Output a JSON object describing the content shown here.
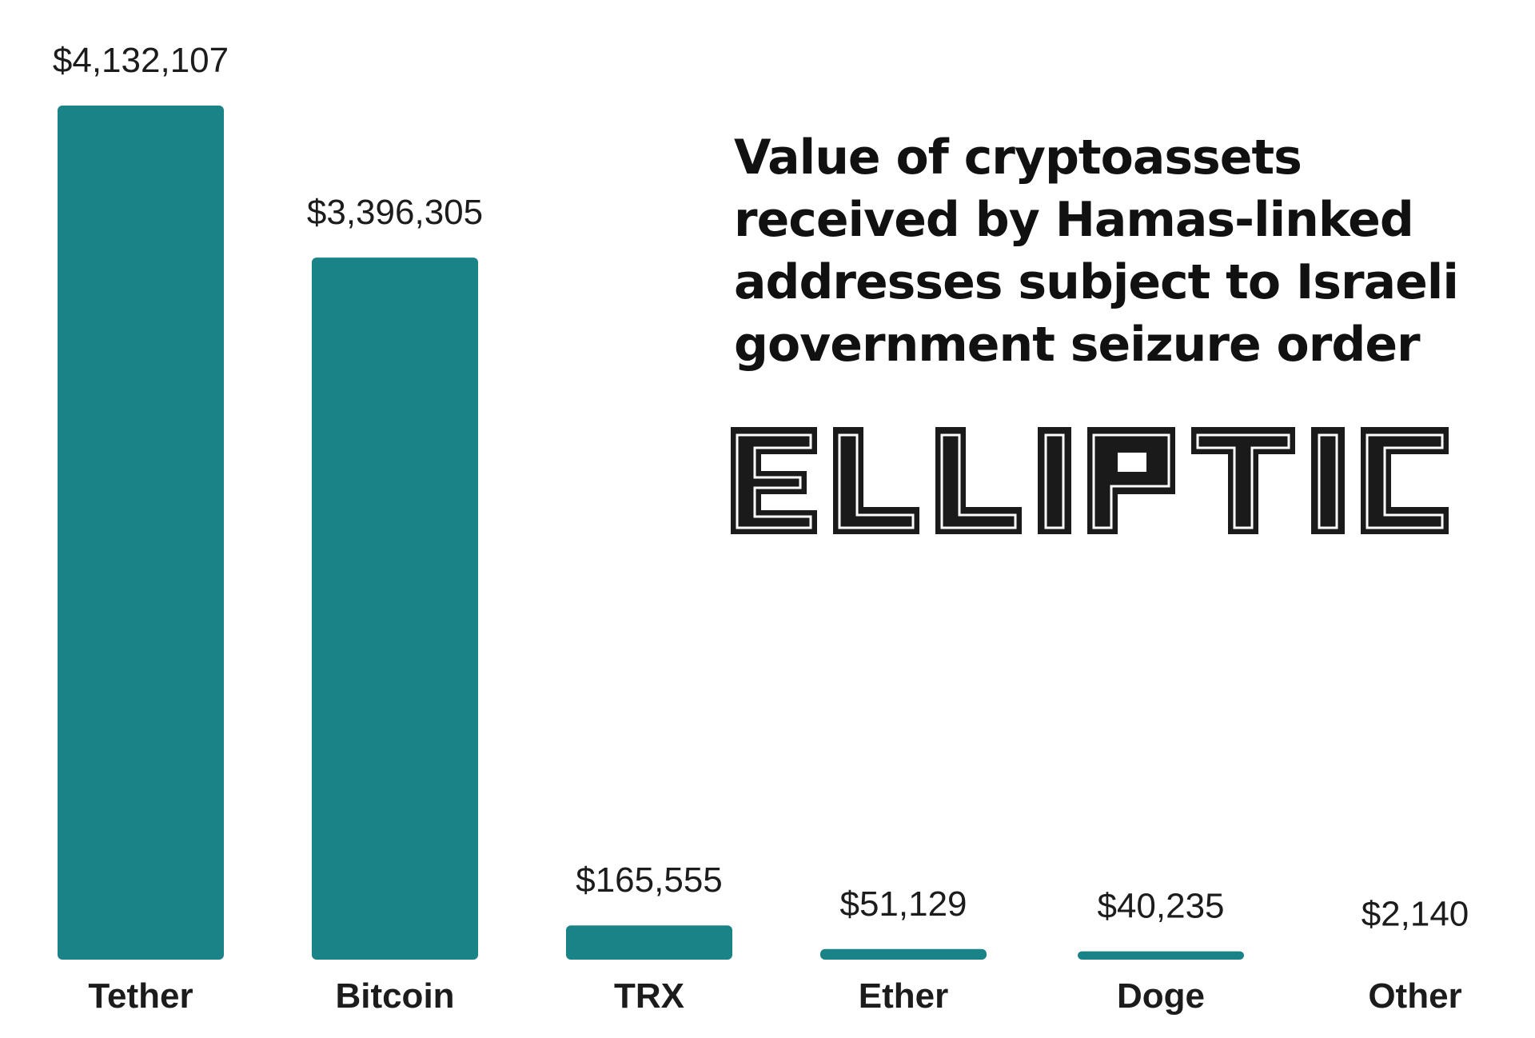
{
  "chart_data": {
    "type": "bar",
    "title": "Value of cryptoassets received by Hamas-linked addresses subject to Israeli government seizure order",
    "categories": [
      "Tether",
      "Bitcoin",
      "TRX",
      "Ether",
      "Doge",
      "Other"
    ],
    "values": [
      4132107,
      3396305,
      165555,
      51129,
      40235,
      2140
    ],
    "value_labels": [
      "$4,132,107",
      "$3,396,305",
      "$165,555",
      "$51,129",
      "$40,235",
      "$2,140"
    ],
    "xlabel": "",
    "ylabel": "",
    "ylim": [
      0,
      4132107
    ],
    "grid": false,
    "bar_color": "#1a8387"
  },
  "brand": {
    "name": "ELLIPTIC",
    "color": "#1a1a1a"
  }
}
